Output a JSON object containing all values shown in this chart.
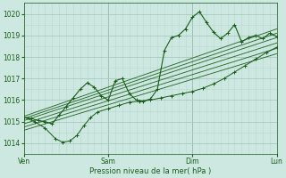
{
  "xlabel": "Pression niveau de la mer( hPa )",
  "xlim": [
    0,
    72
  ],
  "ylim": [
    1013.5,
    1020.5
  ],
  "yticks": [
    1014,
    1015,
    1016,
    1017,
    1018,
    1019,
    1020
  ],
  "xtick_positions": [
    0,
    24,
    48,
    72
  ],
  "xtick_labels": [
    "Ven",
    "Sam",
    "Dim",
    "Lun"
  ],
  "bg_color": "#cde8e0",
  "line_color": "#1a5c1a",
  "grid_major_color": "#a8c8c0",
  "grid_minor_color": "#b8d8d0",
  "figsize": [
    3.2,
    2.0
  ],
  "dpi": 100,
  "trend_lines": [
    [
      1015.25,
      1019.3
    ],
    [
      1015.15,
      1019.1
    ],
    [
      1015.05,
      1018.9
    ],
    [
      1014.9,
      1018.65
    ],
    [
      1014.75,
      1018.4
    ],
    [
      1014.6,
      1018.15
    ]
  ],
  "t_main": [
    0,
    2,
    4,
    6,
    8,
    10,
    12,
    14,
    16,
    18,
    20,
    22,
    24,
    26,
    28,
    30,
    32,
    34,
    36,
    38,
    40,
    42,
    44,
    46,
    48,
    50,
    52,
    54,
    56,
    58,
    60,
    62,
    64,
    66,
    68,
    70,
    72
  ],
  "p_main": [
    1015.2,
    1015.15,
    1015.05,
    1015.0,
    1014.9,
    1015.3,
    1015.7,
    1016.1,
    1016.5,
    1016.8,
    1016.6,
    1016.2,
    1016.0,
    1016.9,
    1017.0,
    1016.3,
    1016.0,
    1015.95,
    1016.05,
    1016.5,
    1018.3,
    1018.9,
    1019.0,
    1019.3,
    1019.85,
    1020.1,
    1019.6,
    1019.15,
    1018.85,
    1019.1,
    1019.5,
    1018.7,
    1018.9,
    1019.0,
    1018.85,
    1019.1,
    1018.95
  ],
  "t_sec": [
    0,
    3,
    6,
    9,
    11,
    13,
    15,
    17,
    19,
    21,
    24,
    27,
    30,
    33,
    36,
    39,
    42,
    45,
    48,
    51,
    54,
    57,
    60,
    63,
    66,
    69,
    72
  ],
  "p_sec": [
    1015.2,
    1015.0,
    1014.7,
    1014.2,
    1014.05,
    1014.1,
    1014.35,
    1014.8,
    1015.2,
    1015.45,
    1015.6,
    1015.75,
    1015.9,
    1015.95,
    1016.0,
    1016.1,
    1016.2,
    1016.3,
    1016.4,
    1016.55,
    1016.75,
    1017.0,
    1017.3,
    1017.6,
    1017.9,
    1018.2,
    1018.45
  ]
}
